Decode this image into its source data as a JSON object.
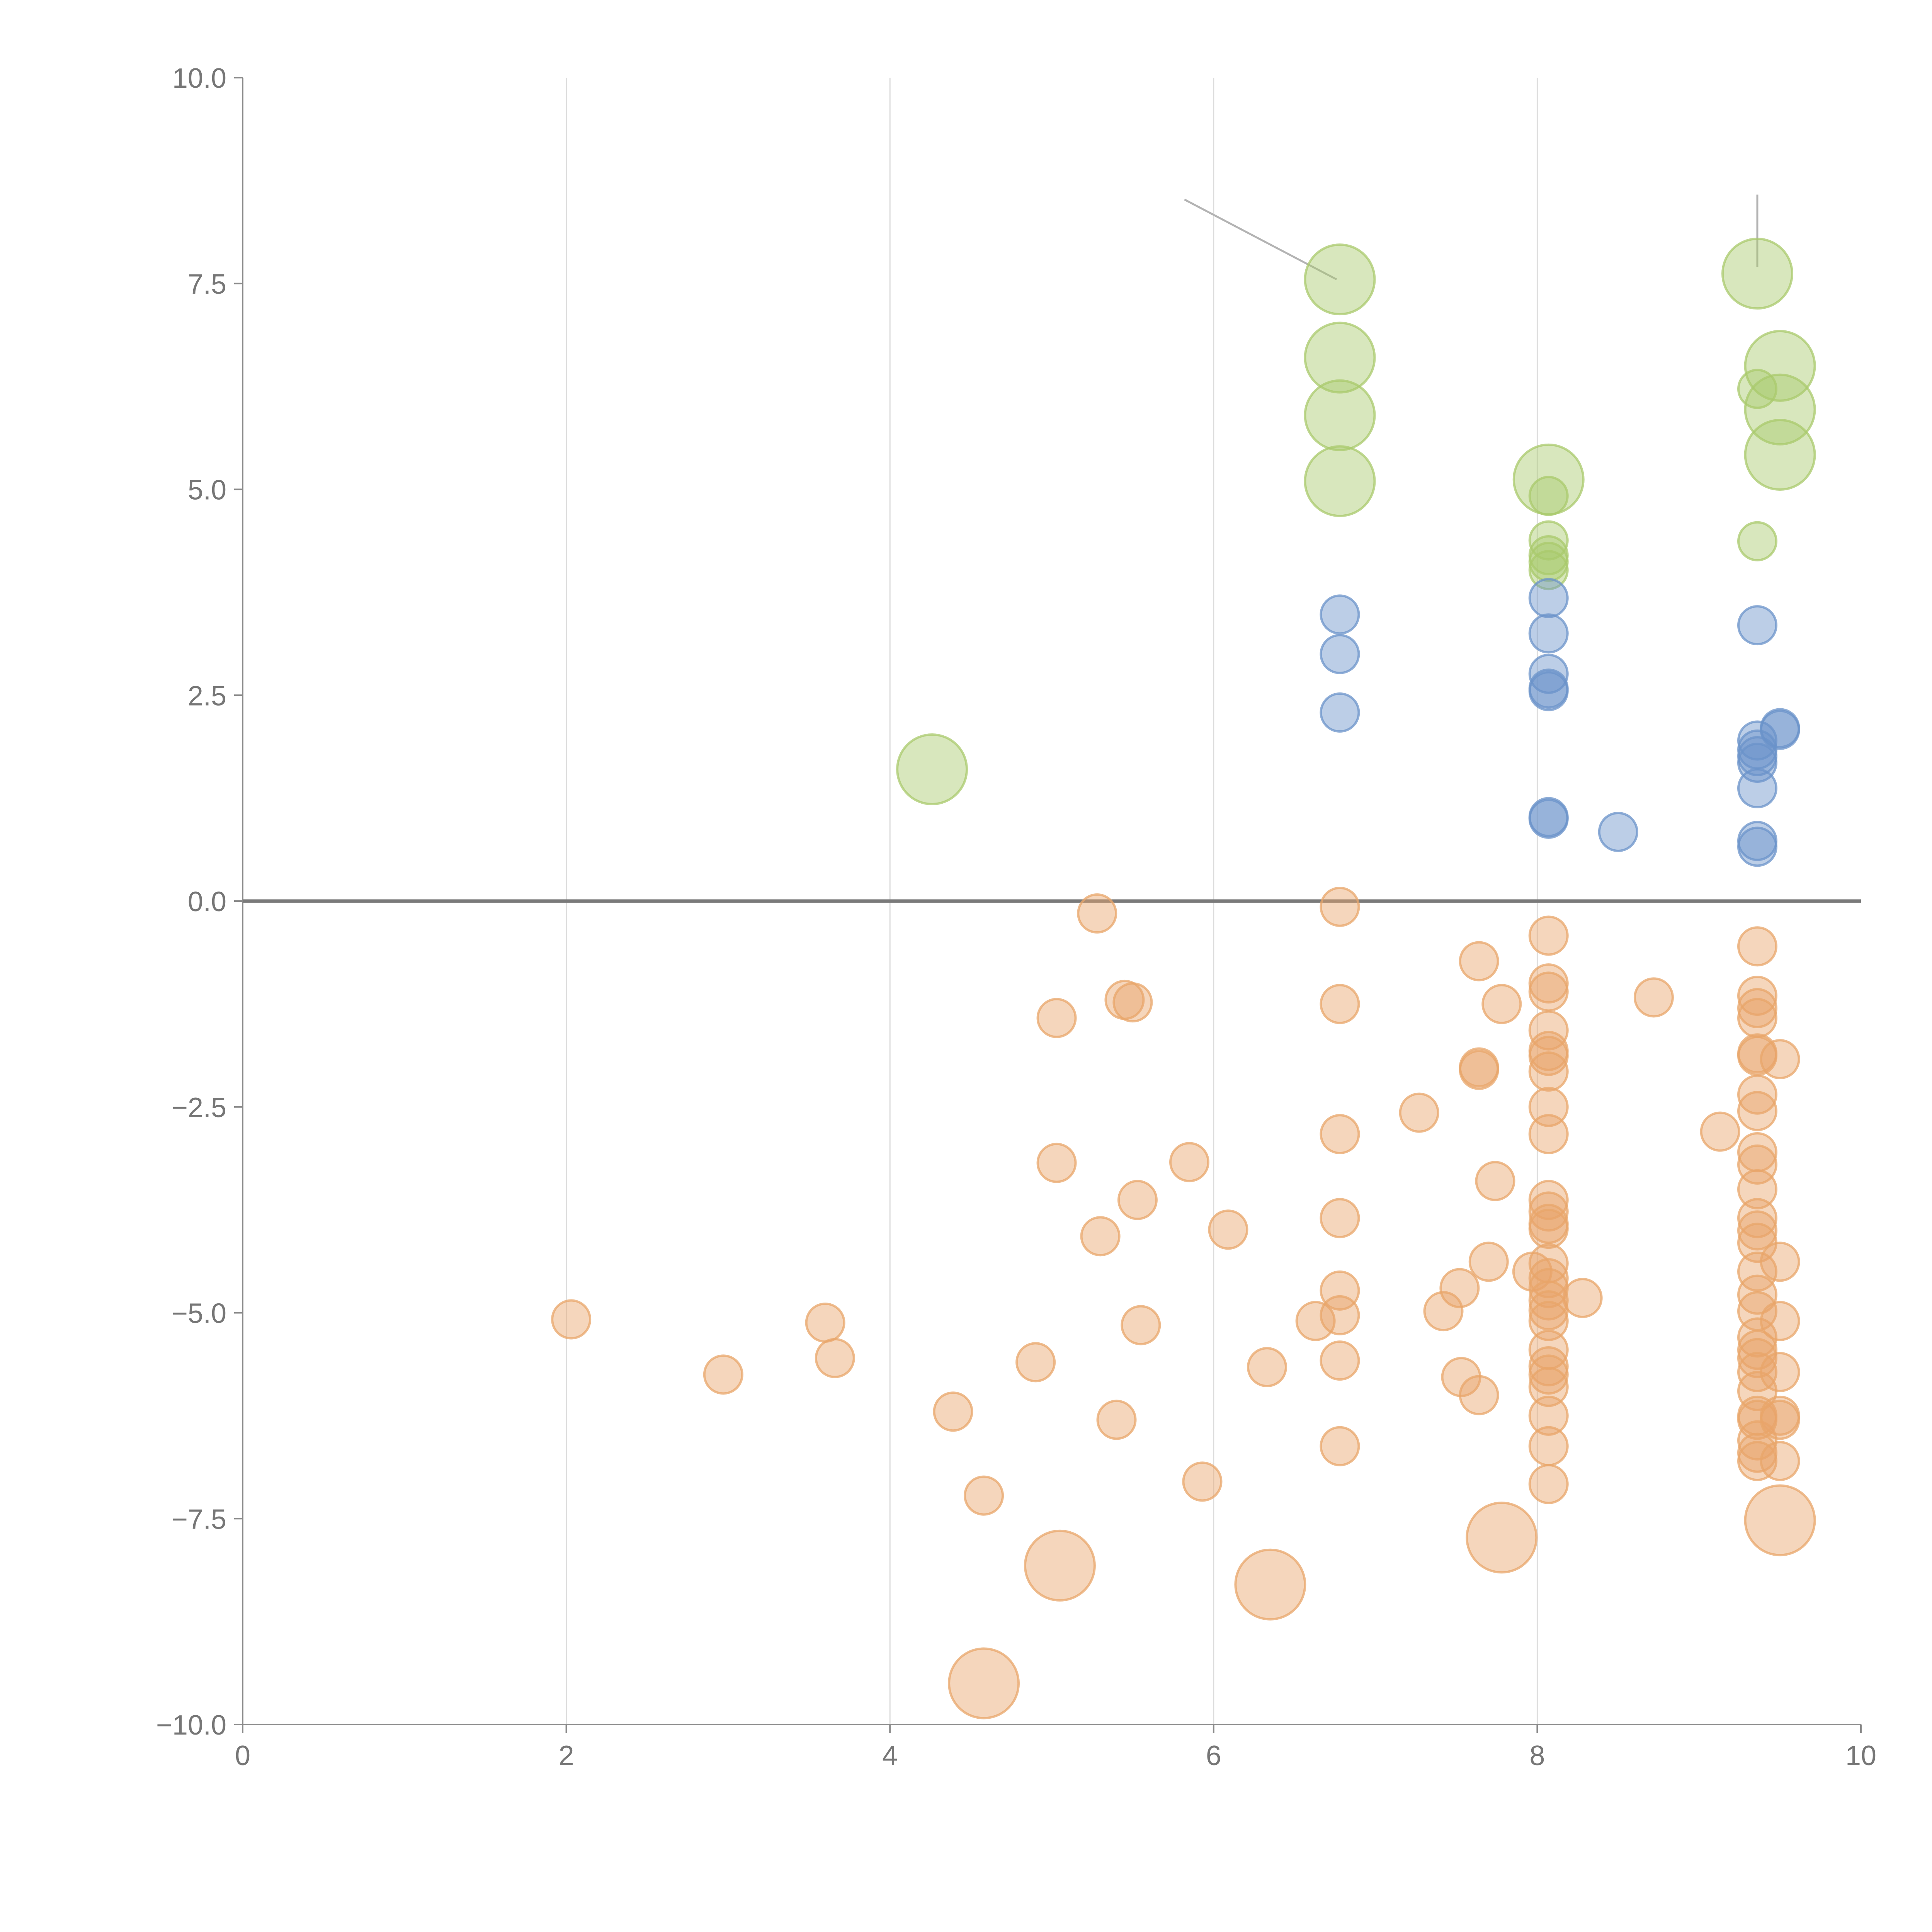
{
  "chart_data": {
    "type": "scatter",
    "title": "",
    "xlabel": "",
    "ylabel": "",
    "xlim": [
      0,
      10
    ],
    "ylim": [
      -10,
      10
    ],
    "grid": "vertical",
    "x_ticks": [
      0,
      2,
      4,
      6,
      8,
      10
    ],
    "y_ticks": [
      10,
      7.5,
      5,
      2.5,
      0,
      -2.5,
      -5,
      -7.5,
      -10
    ],
    "x_tick_labels": [
      "0",
      "2",
      "4",
      "6",
      "8",
      "10"
    ],
    "y_tick_labels": [
      "10.0",
      "7.5",
      "5.0",
      "2.5",
      "0.0",
      "−2.5",
      "−5.0",
      "−7.5",
      "−10.0"
    ],
    "reference_line": {
      "y": 0
    },
    "series": [
      {
        "name": "green",
        "color": "#a9c96c",
        "points": [
          {
            "x": 6.78,
            "y": 7.55,
            "r": 3
          },
          {
            "x": 6.78,
            "y": 6.6,
            "r": 3
          },
          {
            "x": 6.78,
            "y": 5.9,
            "r": 3
          },
          {
            "x": 6.78,
            "y": 5.1,
            "r": 3
          },
          {
            "x": 8.07,
            "y": 5.12,
            "r": 3
          },
          {
            "x": 9.36,
            "y": 7.62,
            "r": 3
          },
          {
            "x": 9.5,
            "y": 6.5,
            "r": 3
          },
          {
            "x": 9.5,
            "y": 5.97,
            "r": 3
          },
          {
            "x": 9.5,
            "y": 5.42,
            "r": 3
          },
          {
            "x": 4.26,
            "y": 1.6,
            "r": 3
          },
          {
            "x": 8.07,
            "y": 4.92,
            "r": 1
          },
          {
            "x": 8.07,
            "y": 4.38,
            "r": 1
          },
          {
            "x": 8.07,
            "y": 4.2,
            "r": 1
          },
          {
            "x": 8.07,
            "y": 4.12,
            "r": 1
          },
          {
            "x": 8.07,
            "y": 4.02,
            "r": 1
          },
          {
            "x": 9.36,
            "y": 6.22,
            "r": 1
          },
          {
            "x": 9.36,
            "y": 4.37,
            "r": 1
          }
        ]
      },
      {
        "name": "blue",
        "color": "#6b93c9",
        "points": [
          {
            "x": 6.78,
            "y": 3.48,
            "r": 1
          },
          {
            "x": 6.78,
            "y": 3.0,
            "r": 1
          },
          {
            "x": 6.78,
            "y": 2.29,
            "r": 1
          },
          {
            "x": 8.07,
            "y": 3.68,
            "r": 1
          },
          {
            "x": 8.07,
            "y": 3.25,
            "r": 1
          },
          {
            "x": 8.07,
            "y": 2.76,
            "r": 1
          },
          {
            "x": 8.07,
            "y": 2.58,
            "r": 1
          },
          {
            "x": 8.07,
            "y": 2.55,
            "r": 1
          },
          {
            "x": 8.07,
            "y": 1.02,
            "r": 1
          },
          {
            "x": 8.07,
            "y": 1.0,
            "r": 1
          },
          {
            "x": 8.5,
            "y": 0.84,
            "r": 1
          },
          {
            "x": 9.36,
            "y": 3.35,
            "r": 1
          },
          {
            "x": 9.36,
            "y": 1.95,
            "r": 1
          },
          {
            "x": 9.36,
            "y": 1.84,
            "r": 1
          },
          {
            "x": 9.36,
            "y": 1.76,
            "r": 1
          },
          {
            "x": 9.36,
            "y": 1.68,
            "r": 1
          },
          {
            "x": 9.36,
            "y": 1.37,
            "r": 1
          },
          {
            "x": 9.36,
            "y": 0.73,
            "r": 1
          },
          {
            "x": 9.36,
            "y": 0.66,
            "r": 1
          },
          {
            "x": 9.5,
            "y": 2.1,
            "r": 1
          },
          {
            "x": 9.5,
            "y": 2.08,
            "r": 1
          }
        ]
      },
      {
        "name": "orange",
        "color": "#e8a56a",
        "points": [
          {
            "x": 4.58,
            "y": -9.5,
            "r": 3
          },
          {
            "x": 5.05,
            "y": -8.07,
            "r": 3
          },
          {
            "x": 6.35,
            "y": -8.3,
            "r": 3
          },
          {
            "x": 7.78,
            "y": -7.73,
            "r": 3
          },
          {
            "x": 9.5,
            "y": -7.52,
            "r": 3
          },
          {
            "x": 2.03,
            "y": -5.08,
            "r": 1
          },
          {
            "x": 2.97,
            "y": -5.75,
            "r": 1
          },
          {
            "x": 3.6,
            "y": -5.12,
            "r": 1
          },
          {
            "x": 3.66,
            "y": -5.55,
            "r": 1
          },
          {
            "x": 4.39,
            "y": -6.2,
            "r": 1
          },
          {
            "x": 4.58,
            "y": -7.22,
            "r": 1
          },
          {
            "x": 4.9,
            "y": -5.6,
            "r": 1
          },
          {
            "x": 5.03,
            "y": -1.42,
            "r": 1
          },
          {
            "x": 5.03,
            "y": -3.18,
            "r": 1
          },
          {
            "x": 5.28,
            "y": -0.15,
            "r": 1
          },
          {
            "x": 5.3,
            "y": -4.07,
            "r": 1
          },
          {
            "x": 5.4,
            "y": -6.3,
            "r": 1
          },
          {
            "x": 5.45,
            "y": -1.2,
            "r": 1
          },
          {
            "x": 5.5,
            "y": -1.23,
            "r": 1
          },
          {
            "x": 5.53,
            "y": -3.63,
            "r": 1
          },
          {
            "x": 5.55,
            "y": -5.15,
            "r": 1
          },
          {
            "x": 5.85,
            "y": -3.17,
            "r": 1
          },
          {
            "x": 5.93,
            "y": -7.05,
            "r": 1
          },
          {
            "x": 6.09,
            "y": -3.99,
            "r": 1
          },
          {
            "x": 6.33,
            "y": -5.66,
            "r": 1
          },
          {
            "x": 6.63,
            "y": -5.1,
            "r": 1
          },
          {
            "x": 6.78,
            "y": -0.07,
            "r": 1
          },
          {
            "x": 6.78,
            "y": -1.25,
            "r": 1
          },
          {
            "x": 6.78,
            "y": -2.83,
            "r": 1
          },
          {
            "x": 6.78,
            "y": -3.85,
            "r": 1
          },
          {
            "x": 6.78,
            "y": -4.73,
            "r": 1
          },
          {
            "x": 6.78,
            "y": -5.03,
            "r": 1
          },
          {
            "x": 6.78,
            "y": -5.58,
            "r": 1
          },
          {
            "x": 6.78,
            "y": -6.62,
            "r": 1
          },
          {
            "x": 7.27,
            "y": -2.57,
            "r": 1
          },
          {
            "x": 7.42,
            "y": -4.98,
            "r": 1
          },
          {
            "x": 7.52,
            "y": -4.7,
            "r": 1
          },
          {
            "x": 7.53,
            "y": -5.78,
            "r": 1
          },
          {
            "x": 7.64,
            "y": -0.73,
            "r": 1
          },
          {
            "x": 7.64,
            "y": -2.02,
            "r": 1
          },
          {
            "x": 7.64,
            "y": -2.05,
            "r": 1
          },
          {
            "x": 7.64,
            "y": -6.0,
            "r": 1
          },
          {
            "x": 7.7,
            "y": -4.38,
            "r": 1
          },
          {
            "x": 7.74,
            "y": -3.4,
            "r": 1
          },
          {
            "x": 7.78,
            "y": -1.25,
            "r": 1
          },
          {
            "x": 7.97,
            "y": -4.5,
            "r": 1
          },
          {
            "x": 8.28,
            "y": -4.82,
            "r": 1
          },
          {
            "x": 8.72,
            "y": -1.17,
            "r": 1
          },
          {
            "x": 9.13,
            "y": -2.8,
            "r": 1
          },
          {
            "x": 8.07,
            "y": -0.42,
            "r": 1
          },
          {
            "x": 8.07,
            "y": -1.0,
            "r": 1
          },
          {
            "x": 8.07,
            "y": -1.1,
            "r": 1
          },
          {
            "x": 8.07,
            "y": -1.57,
            "r": 1
          },
          {
            "x": 8.07,
            "y": -1.82,
            "r": 1
          },
          {
            "x": 8.07,
            "y": -1.88,
            "r": 1
          },
          {
            "x": 8.07,
            "y": -2.07,
            "r": 1
          },
          {
            "x": 8.07,
            "y": -2.5,
            "r": 1
          },
          {
            "x": 8.07,
            "y": -2.83,
            "r": 1
          },
          {
            "x": 8.07,
            "y": -3.63,
            "r": 1
          },
          {
            "x": 8.07,
            "y": -3.77,
            "r": 1
          },
          {
            "x": 8.07,
            "y": -3.92,
            "r": 1
          },
          {
            "x": 8.07,
            "y": -3.98,
            "r": 1
          },
          {
            "x": 8.07,
            "y": -4.4,
            "r": 1
          },
          {
            "x": 8.07,
            "y": -4.58,
            "r": 1
          },
          {
            "x": 8.07,
            "y": -4.7,
            "r": 1
          },
          {
            "x": 8.07,
            "y": -4.85,
            "r": 1
          },
          {
            "x": 8.07,
            "y": -4.97,
            "r": 1
          },
          {
            "x": 8.07,
            "y": -5.1,
            "r": 1
          },
          {
            "x": 8.07,
            "y": -5.45,
            "r": 1
          },
          {
            "x": 8.07,
            "y": -5.65,
            "r": 1
          },
          {
            "x": 8.07,
            "y": -5.75,
            "r": 1
          },
          {
            "x": 8.07,
            "y": -5.9,
            "r": 1
          },
          {
            "x": 8.07,
            "y": -6.25,
            "r": 1
          },
          {
            "x": 8.07,
            "y": -6.62,
            "r": 1
          },
          {
            "x": 8.07,
            "y": -7.08,
            "r": 1
          },
          {
            "x": 9.36,
            "y": -0.55,
            "r": 1
          },
          {
            "x": 9.36,
            "y": -1.15,
            "r": 1
          },
          {
            "x": 9.36,
            "y": -1.3,
            "r": 1
          },
          {
            "x": 9.36,
            "y": -1.42,
            "r": 1
          },
          {
            "x": 9.36,
            "y": -1.85,
            "r": 1
          },
          {
            "x": 9.36,
            "y": -1.88,
            "r": 1
          },
          {
            "x": 9.36,
            "y": -2.35,
            "r": 1
          },
          {
            "x": 9.36,
            "y": -2.55,
            "r": 1
          },
          {
            "x": 9.36,
            "y": -3.05,
            "r": 1
          },
          {
            "x": 9.36,
            "y": -3.2,
            "r": 1
          },
          {
            "x": 9.36,
            "y": -3.5,
            "r": 1
          },
          {
            "x": 9.36,
            "y": -3.85,
            "r": 1
          },
          {
            "x": 9.36,
            "y": -4.0,
            "r": 1
          },
          {
            "x": 9.36,
            "y": -4.15,
            "r": 1
          },
          {
            "x": 9.36,
            "y": -4.5,
            "r": 1
          },
          {
            "x": 9.36,
            "y": -4.78,
            "r": 1
          },
          {
            "x": 9.36,
            "y": -4.98,
            "r": 1
          },
          {
            "x": 9.36,
            "y": -5.3,
            "r": 1
          },
          {
            "x": 9.36,
            "y": -5.45,
            "r": 1
          },
          {
            "x": 9.36,
            "y": -5.55,
            "r": 1
          },
          {
            "x": 9.36,
            "y": -5.72,
            "r": 1
          },
          {
            "x": 9.36,
            "y": -5.95,
            "r": 1
          },
          {
            "x": 9.36,
            "y": -6.25,
            "r": 1
          },
          {
            "x": 9.36,
            "y": -6.3,
            "r": 1
          },
          {
            "x": 9.36,
            "y": -6.55,
            "r": 1
          },
          {
            "x": 9.36,
            "y": -6.7,
            "r": 1
          },
          {
            "x": 9.36,
            "y": -6.8,
            "r": 1
          },
          {
            "x": 9.5,
            "y": -1.92,
            "r": 1
          },
          {
            "x": 9.5,
            "y": -4.38,
            "r": 1
          },
          {
            "x": 9.5,
            "y": -5.1,
            "r": 1
          },
          {
            "x": 9.5,
            "y": -5.72,
            "r": 1
          },
          {
            "x": 9.5,
            "y": -6.25,
            "r": 1
          },
          {
            "x": 9.5,
            "y": -6.3,
            "r": 1
          },
          {
            "x": 9.5,
            "y": -6.8,
            "r": 1
          }
        ]
      }
    ],
    "annotations": [
      {
        "from": [
          6.76,
          7.55
        ],
        "to": [
          5.82,
          8.52
        ]
      },
      {
        "from": [
          9.36,
          7.7
        ],
        "to": [
          9.36,
          8.58
        ]
      }
    ]
  }
}
